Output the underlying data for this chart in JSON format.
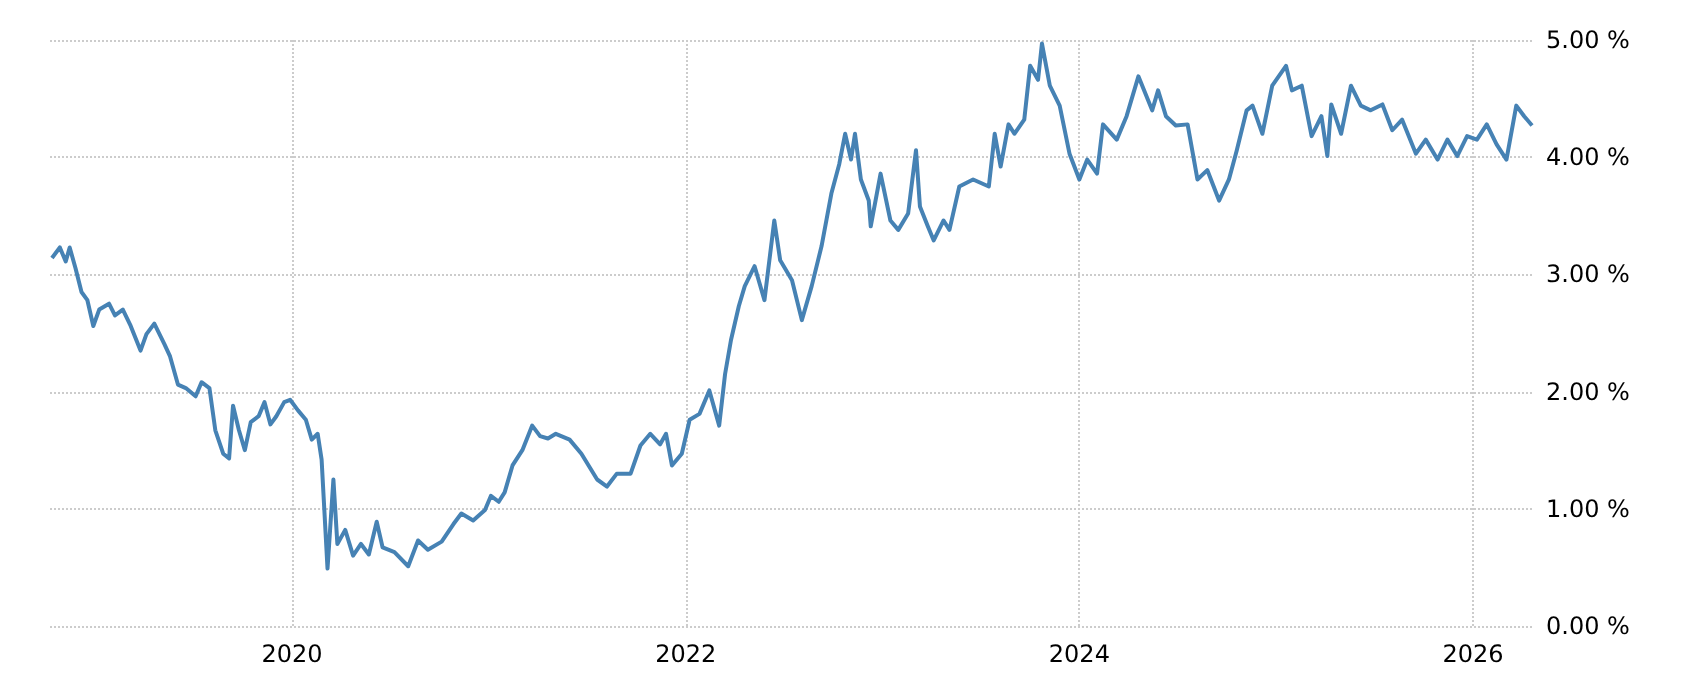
{
  "chart_data": {
    "type": "line",
    "x": [
      2018.78,
      2018.82,
      2018.85,
      2018.87,
      2018.9,
      2018.93,
      2018.96,
      2018.99,
      2019.02,
      2019.07,
      2019.1,
      2019.14,
      2019.18,
      2019.23,
      2019.26,
      2019.3,
      2019.35,
      2019.38,
      2019.42,
      2019.46,
      2019.51,
      2019.54,
      2019.58,
      2019.61,
      2019.65,
      2019.68,
      2019.7,
      2019.73,
      2019.76,
      2019.79,
      2019.83,
      2019.86,
      2019.89,
      2019.92,
      2019.96,
      2019.99,
      2020.03,
      2020.07,
      2020.1,
      2020.13,
      2020.15,
      2020.18,
      2020.21,
      2020.23,
      2020.27,
      2020.31,
      2020.35,
      2020.39,
      2020.43,
      2020.46,
      2020.52,
      2020.59,
      2020.64,
      2020.69,
      2020.76,
      2020.82,
      2020.86,
      2020.92,
      2020.98,
      2021.01,
      2021.05,
      2021.08,
      2021.12,
      2021.17,
      2021.22,
      2021.26,
      2021.3,
      2021.34,
      2021.41,
      2021.47,
      2021.55,
      2021.6,
      2021.65,
      2021.72,
      2021.77,
      2021.82,
      2021.87,
      2021.9,
      2021.93,
      2021.98,
      2022.02,
      2022.07,
      2022.12,
      2022.17,
      2022.2,
      2022.23,
      2022.27,
      2022.3,
      2022.35,
      2022.4,
      2022.45,
      2022.48,
      2022.54,
      2022.59,
      2022.64,
      2022.69,
      2022.74,
      2022.78,
      2022.81,
      2022.84,
      2022.86,
      2022.89,
      2022.93,
      2022.94,
      2022.99,
      2023.04,
      2023.08,
      2023.13,
      2023.17,
      2023.19,
      2023.23,
      2023.26,
      2023.31,
      2023.34,
      2023.39,
      2023.46,
      2023.54,
      2023.57,
      2023.6,
      2023.64,
      2023.67,
      2023.72,
      2023.75,
      2023.79,
      2023.81,
      2023.85,
      2023.9,
      2023.95,
      2024.0,
      2024.04,
      2024.09,
      2024.12,
      2024.19,
      2024.24,
      2024.3,
      2024.37,
      2024.4,
      2024.44,
      2024.49,
      2024.55,
      2024.6,
      2024.65,
      2024.71,
      2024.76,
      2024.8,
      2024.85,
      2024.88,
      2024.93,
      2024.98,
      2025.05,
      2025.08,
      2025.13,
      2025.18,
      2025.23,
      2025.26,
      2025.28,
      2025.33,
      2025.38,
      2025.43,
      2025.48,
      2025.54,
      2025.59,
      2025.64,
      2025.71,
      2025.76,
      2025.82,
      2025.87,
      2025.92,
      2025.97,
      2026.02,
      2026.07,
      2026.12,
      2026.17,
      2026.22,
      2026.26,
      2026.3
    ],
    "series": [
      {
        "color": "#4682b4",
        "values": [
          3.14,
          3.23,
          3.11,
          3.23,
          3.05,
          2.85,
          2.78,
          2.56,
          2.7,
          2.75,
          2.65,
          2.7,
          2.56,
          2.35,
          2.49,
          2.58,
          2.41,
          2.3,
          2.06,
          2.03,
          1.96,
          2.08,
          2.03,
          1.67,
          1.47,
          1.43,
          1.88,
          1.67,
          1.5,
          1.74,
          1.79,
          1.91,
          1.72,
          1.79,
          1.91,
          1.93,
          1.84,
          1.76,
          1.59,
          1.64,
          1.42,
          0.49,
          1.25,
          0.7,
          0.82,
          0.6,
          0.7,
          0.61,
          0.89,
          0.67,
          0.63,
          0.51,
          0.73,
          0.65,
          0.72,
          0.87,
          0.96,
          0.9,
          0.99,
          1.11,
          1.06,
          1.14,
          1.37,
          1.5,
          1.71,
          1.62,
          1.6,
          1.64,
          1.59,
          1.47,
          1.25,
          1.19,
          1.3,
          1.3,
          1.54,
          1.64,
          1.55,
          1.64,
          1.37,
          1.47,
          1.76,
          1.81,
          2.01,
          1.71,
          2.15,
          2.44,
          2.73,
          2.9,
          3.07,
          2.78,
          3.46,
          3.12,
          2.95,
          2.61,
          2.9,
          3.24,
          3.69,
          3.94,
          4.2,
          3.98,
          4.2,
          3.81,
          3.63,
          3.41,
          3.86,
          3.46,
          3.38,
          3.52,
          4.06,
          3.58,
          3.41,
          3.29,
          3.46,
          3.38,
          3.75,
          3.81,
          3.75,
          4.2,
          3.92,
          4.28,
          4.2,
          4.32,
          4.78,
          4.66,
          4.97,
          4.61,
          4.44,
          4.03,
          3.81,
          3.98,
          3.86,
          4.28,
          4.15,
          4.35,
          4.69,
          4.4,
          4.57,
          4.35,
          4.27,
          4.28,
          3.81,
          3.89,
          3.63,
          3.81,
          4.06,
          4.4,
          4.44,
          4.2,
          4.61,
          4.78,
          4.57,
          4.61,
          4.18,
          4.35,
          4.01,
          4.45,
          4.2,
          4.61,
          4.44,
          4.4,
          4.45,
          4.23,
          4.32,
          4.03,
          4.15,
          3.98,
          4.15,
          4.01,
          4.18,
          4.15,
          4.28,
          4.11,
          3.98,
          4.44,
          4.35,
          4.27
        ]
      }
    ],
    "xlim": [
      2018.77,
      2026.31
    ],
    "xticks": [
      2020,
      2022,
      2024,
      2026
    ],
    "ylim": [
      0,
      5
    ],
    "yticks": [
      {
        "value": 0,
        "label": "0.00 %"
      },
      {
        "value": 1,
        "label": "1.00 %"
      },
      {
        "value": 2,
        "label": "2.00 %"
      },
      {
        "value": 3,
        "label": "3.00 %"
      },
      {
        "value": 4,
        "label": "4.00 %"
      },
      {
        "value": 5,
        "label": "5.00 %"
      }
    ],
    "grid": true,
    "marker": "none"
  }
}
